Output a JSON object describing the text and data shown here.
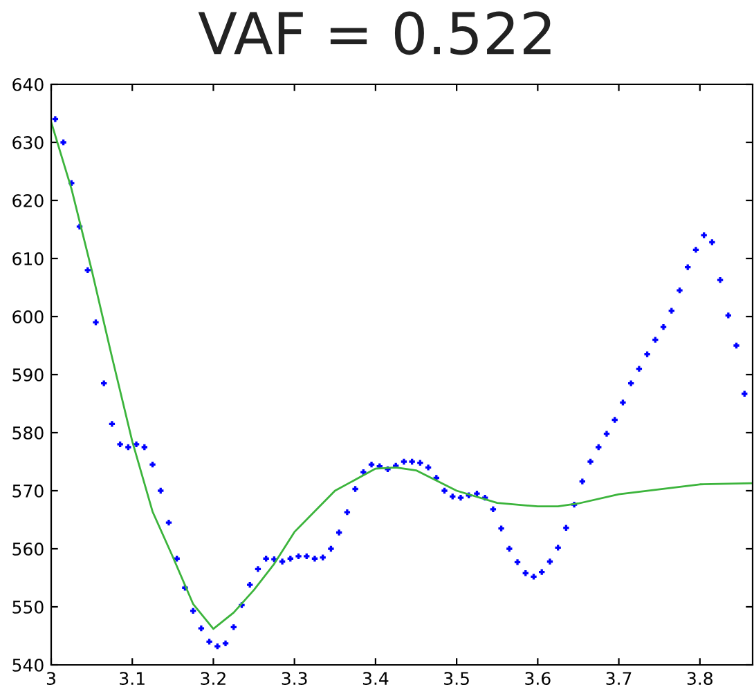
{
  "chart_data": {
    "type": "scatter",
    "title": "VAF = 0.522",
    "xlim": [
      3,
      3.865
    ],
    "ylim": [
      540,
      640
    ],
    "xticks": [
      3,
      3.1,
      3.2,
      3.3,
      3.4,
      3.5,
      3.6,
      3.7,
      3.8
    ],
    "yticks": [
      540,
      550,
      560,
      570,
      580,
      590,
      600,
      610,
      620,
      630,
      640
    ],
    "grid": false,
    "marker": "cross",
    "series": [
      {
        "color": "#0000ff",
        "x": [
          3.005,
          3.015,
          3.025,
          3.035,
          3.045,
          3.055,
          3.065,
          3.075,
          3.085,
          3.095,
          3.105,
          3.115,
          3.125,
          3.135,
          3.145,
          3.155,
          3.165,
          3.175,
          3.185,
          3.195,
          3.205,
          3.215,
          3.225,
          3.235,
          3.245,
          3.255,
          3.265,
          3.275,
          3.285,
          3.295,
          3.305,
          3.315,
          3.325,
          3.335,
          3.345,
          3.355,
          3.365,
          3.375,
          3.385,
          3.395,
          3.405,
          3.415,
          3.425,
          3.435,
          3.445,
          3.455,
          3.465,
          3.475,
          3.485,
          3.495,
          3.505,
          3.515,
          3.525,
          3.535,
          3.545,
          3.555,
          3.565,
          3.575,
          3.585,
          3.595,
          3.605,
          3.615,
          3.625,
          3.635,
          3.645,
          3.655,
          3.665,
          3.675,
          3.685,
          3.695,
          3.705,
          3.715,
          3.725,
          3.735,
          3.745,
          3.755,
          3.765,
          3.775,
          3.785,
          3.795,
          3.805,
          3.815,
          3.825,
          3.835,
          3.845,
          3.855
        ],
        "values": [
          634,
          630,
          623,
          615.5,
          608,
          599,
          588.5,
          581.5,
          578,
          577.5,
          578,
          577.5,
          574.5,
          570,
          564.5,
          558.3,
          553.3,
          549.3,
          546.3,
          544,
          543.2,
          543.7,
          546.5,
          550.3,
          553.8,
          556.5,
          558.3,
          558.2,
          557.8,
          558.3,
          558.7,
          558.7,
          558.3,
          558.5,
          560,
          562.8,
          566.3,
          570.3,
          573.2,
          574.5,
          574.2,
          573.7,
          574.3,
          575,
          575,
          574.8,
          574,
          572.2,
          570,
          569,
          568.8,
          569.2,
          569.5,
          568.8,
          566.8,
          563.5,
          560,
          557.7,
          555.8,
          555.2,
          556,
          557.8,
          560.2,
          563.6,
          567.6,
          571.6,
          575,
          577.5,
          579.8,
          582.2,
          585.2,
          588.5,
          591,
          593.5,
          596,
          598.2,
          601,
          604.5,
          608.5,
          611.5,
          614,
          612.8,
          606.3,
          600.2,
          595,
          586.7
        ]
      },
      {
        "type": "line",
        "color": "#3cb43c",
        "marker": "none",
        "line_style": "solid",
        "x": [
          3.0,
          3.025,
          3.05,
          3.075,
          3.1,
          3.125,
          3.15,
          3.175,
          3.2,
          3.225,
          3.25,
          3.275,
          3.3,
          3.35,
          3.4,
          3.425,
          3.45,
          3.5,
          3.55,
          3.6,
          3.625,
          3.65,
          3.7,
          3.8,
          3.865
        ],
        "values": [
          633.5,
          622,
          608,
          593,
          578.5,
          566.4,
          558.6,
          550.5,
          546.2,
          549,
          552.9,
          557.4,
          562.9,
          570,
          573.8,
          574,
          573.5,
          570,
          567.9,
          567.3,
          567.3,
          567.8,
          569.4,
          571.1,
          571.3
        ]
      }
    ]
  }
}
